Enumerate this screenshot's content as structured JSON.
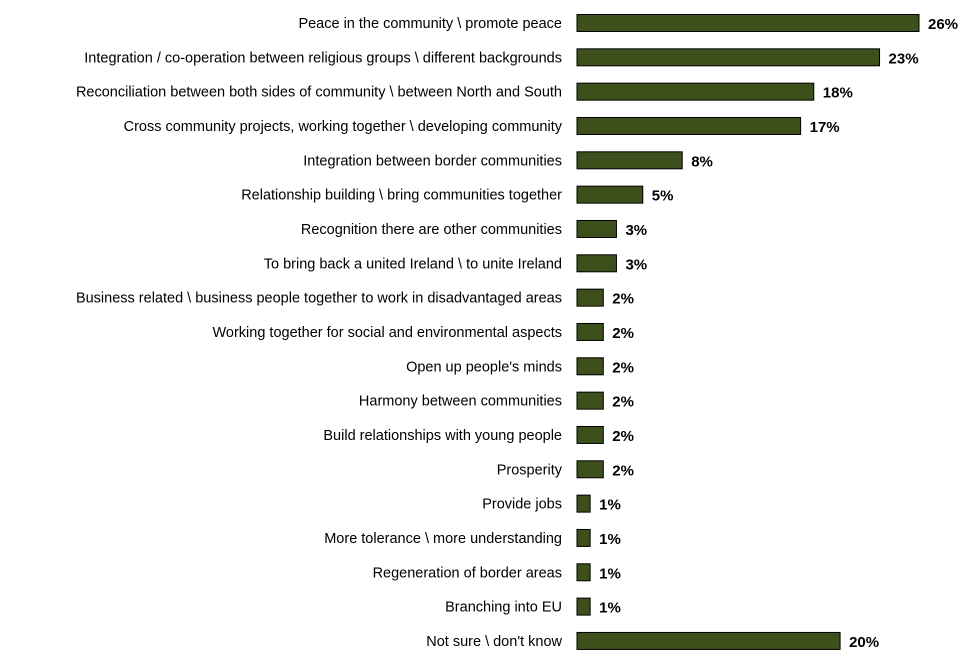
{
  "chart_data": {
    "type": "bar",
    "orientation": "horizontal",
    "title": "",
    "xlabel": "",
    "ylabel": "",
    "grid": false,
    "legend": "none",
    "bar_color": "#3d4f1a",
    "value_suffix": "%",
    "xlim": [
      0,
      26
    ],
    "categories": [
      "Peace in the community \\ promote peace",
      "Integration / co-operation between religious groups \\ different backgrounds",
      "Reconciliation between both sides of community \\ between North and South",
      "Cross community projects, working together \\ developing community",
      "Integration between border communities",
      "Relationship building \\ bring communities together",
      "Recognition there are other communities",
      "To bring back a united Ireland \\ to unite Ireland",
      "Business related \\ business people together to work in disadvantaged areas",
      "Working together for social and environmental aspects",
      "Open up people's minds",
      "Harmony between communities",
      "Build relationships with young people",
      "Prosperity",
      "Provide jobs",
      "More tolerance \\ more understanding",
      "Regeneration of border areas",
      "Branching into EU",
      "Not sure \\ don't know"
    ],
    "values": [
      26,
      23,
      18,
      17,
      8,
      5,
      3,
      3,
      2,
      2,
      2,
      2,
      2,
      2,
      1,
      1,
      1,
      1,
      20
    ],
    "value_labels": [
      "26%",
      "23%",
      "18%",
      "17%",
      "8%",
      "5%",
      "3%",
      "3%",
      "2%",
      "2%",
      "2%",
      "2%",
      "2%",
      "2%",
      "1%",
      "1%",
      "1%",
      "1%",
      "20%"
    ]
  }
}
